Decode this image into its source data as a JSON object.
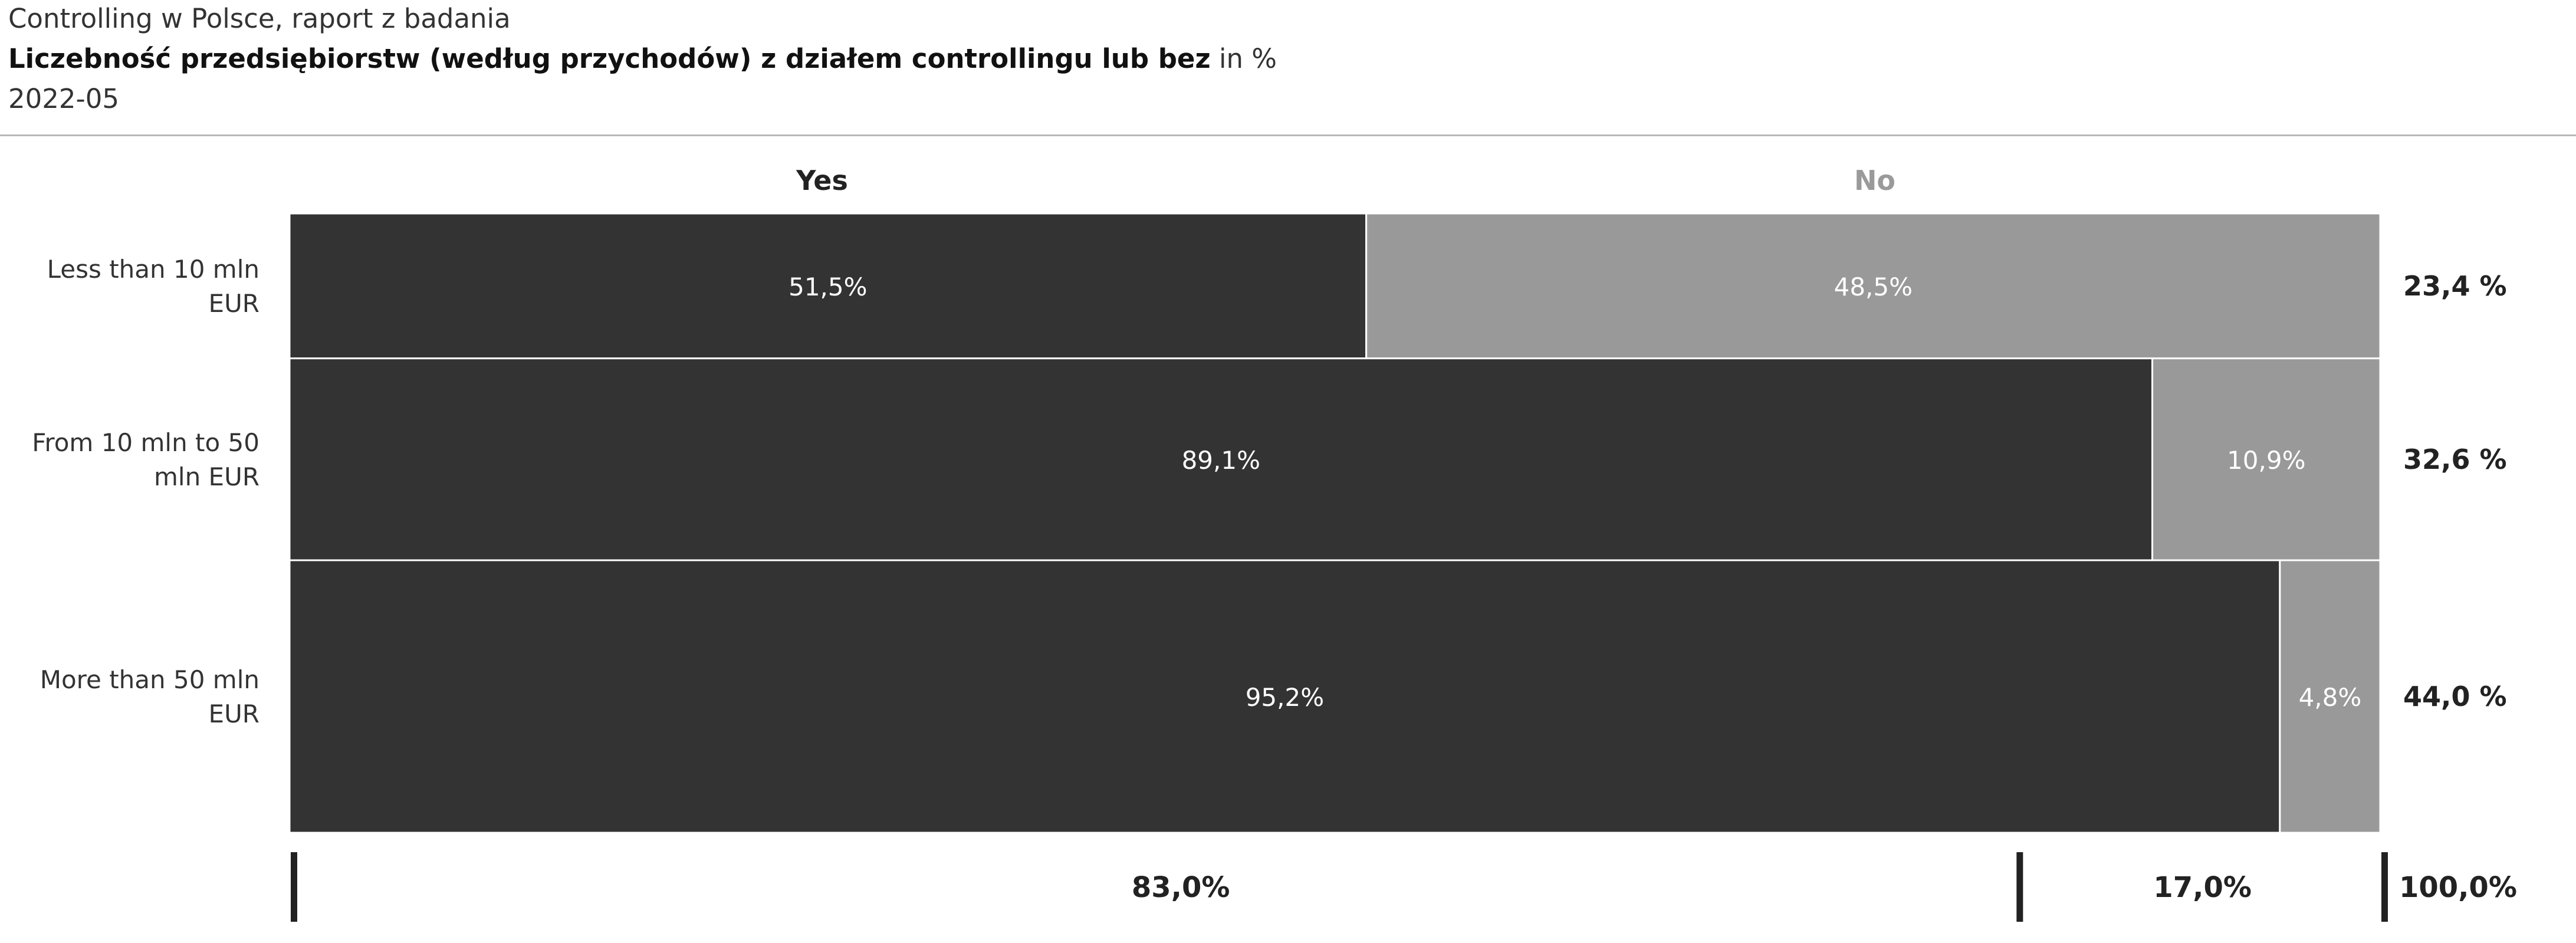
{
  "header": {
    "source": "Controlling w Polsce, raport z badania",
    "title": "Liczebność przedsiębiorstw (według przychodów) z działem controllingu lub bez",
    "unit": "in %",
    "date": "2022-05"
  },
  "chart_data": {
    "type": "bar",
    "subtype": "marimekko",
    "series": [
      {
        "name": "Yes",
        "color": "#333333",
        "values": [
          51.5,
          89.1,
          95.2
        ],
        "value_labels": [
          "51,5%",
          "89,1%",
          "95,2%"
        ]
      },
      {
        "name": "No",
        "color": "#999999",
        "values": [
          48.5,
          10.9,
          4.8
        ],
        "value_labels": [
          "48,5%",
          "10,9%",
          "4,8%"
        ]
      }
    ],
    "categories": [
      {
        "label_lines": [
          "Less than 10 mln",
          "EUR"
        ],
        "share": 23.4,
        "share_label": "23,4 %"
      },
      {
        "label_lines": [
          "From 10 mln to 50",
          "mln EUR"
        ],
        "share": 32.6,
        "share_label": "32,6 %"
      },
      {
        "label_lines": [
          "More than 50 mln",
          "EUR"
        ],
        "share": 44.0,
        "share_label": "44,0 %"
      }
    ],
    "totals": [
      {
        "series": "Yes",
        "value": 83.0,
        "label": "83,0%"
      },
      {
        "series": "No",
        "value": 17.0,
        "label": "17,0%"
      },
      {
        "series": "Total",
        "value": 100.0,
        "label": "100,0%"
      }
    ],
    "legend_placement": "top",
    "grid": false
  }
}
